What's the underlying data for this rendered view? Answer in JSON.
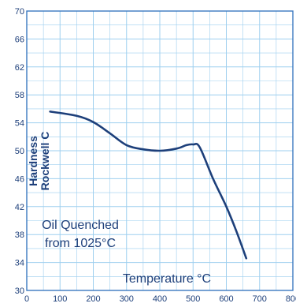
{
  "chart_data": {
    "type": "line",
    "title": "",
    "xlabel": "Temperature °C",
    "ylabel_lines": [
      "Hardness",
      "Rockwell C"
    ],
    "annotation_lines": [
      "Oil Quenched",
      "from 1025°C"
    ],
    "xlim": [
      0,
      800
    ],
    "ylim": [
      30,
      70
    ],
    "x_ticks": [
      "0",
      "100",
      "200",
      "300",
      "400",
      "500",
      "600",
      "700",
      "800"
    ],
    "y_ticks": [
      "30",
      "34",
      "38",
      "42",
      "46",
      "50",
      "54",
      "58",
      "62",
      "66",
      "70"
    ],
    "grid": true,
    "x": [
      70,
      150,
      200,
      250,
      300,
      350,
      400,
      450,
      480,
      500,
      520,
      560,
      600,
      630,
      660
    ],
    "series": [
      {
        "values": [
          55.6,
          55.0,
          54.1,
          52.5,
          50.8,
          50.2,
          50.0,
          50.3,
          50.8,
          50.9,
          50.5,
          46.0,
          42.0,
          38.5,
          34.6
        ]
      }
    ],
    "colors": {
      "line": "#1d3f7a",
      "grid": "#9ecfef",
      "frame": "#3b79c0",
      "text": "#1d3f7a",
      "background": "#ffffff"
    }
  }
}
